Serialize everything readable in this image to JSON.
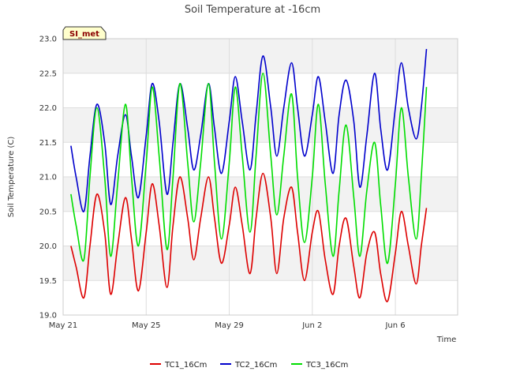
{
  "chart_data": {
    "type": "line",
    "title": "Soil Temperature at -16cm",
    "xlabel": "Time",
    "ylabel": "Soil Temperature (C)",
    "ylim": [
      19.0,
      23.0
    ],
    "xlim": [
      "2023-05-21",
      "2023-06-09"
    ],
    "grid": true,
    "legend_position": "bottom",
    "badge": "SI_met",
    "y_ticks": [
      "19.0",
      "19.5",
      "20.0",
      "20.5",
      "21.0",
      "21.5",
      "22.0",
      "22.5",
      "23.0"
    ],
    "x_ticks": [
      {
        "label": "May 21",
        "x": "2023-05-21"
      },
      {
        "label": "May 25",
        "x": "2023-05-25"
      },
      {
        "label": "May 29",
        "x": "2023-05-29"
      },
      {
        "label": "Jun 2",
        "x": "2023-06-02"
      },
      {
        "label": "Jun 6",
        "x": "2023-06-06"
      }
    ],
    "series": [
      {
        "name": "TC1_16Cm",
        "color": "#dd0000",
        "x": [
          "2023-05-21 09:00",
          "2023-05-21 15:00",
          "2023-05-22 00:00",
          "2023-05-22 07:00",
          "2023-05-22 15:00",
          "2023-05-23 00:00",
          "2023-05-23 07:00",
          "2023-05-23 15:00",
          "2023-05-24 00:00",
          "2023-05-24 07:00",
          "2023-05-24 15:00",
          "2023-05-25 00:00",
          "2023-05-25 07:00",
          "2023-05-25 15:00",
          "2023-05-26 00:00",
          "2023-05-26 07:00",
          "2023-05-26 15:00",
          "2023-05-27 00:00",
          "2023-05-27 07:00",
          "2023-05-27 15:00",
          "2023-05-28 00:00",
          "2023-05-28 07:00",
          "2023-05-28 15:00",
          "2023-05-29 00:00",
          "2023-05-29 07:00",
          "2023-05-29 15:00",
          "2023-05-30 00:00",
          "2023-05-30 07:00",
          "2023-05-30 15:00",
          "2023-05-31 00:00",
          "2023-05-31 07:00",
          "2023-05-31 15:00",
          "2023-06-01 00:00",
          "2023-06-01 07:00",
          "2023-06-01 15:00",
          "2023-06-02 00:00",
          "2023-06-02 07:00",
          "2023-06-02 15:00",
          "2023-06-03 00:00",
          "2023-06-03 07:00",
          "2023-06-03 15:00",
          "2023-06-04 00:00",
          "2023-06-04 07:00",
          "2023-06-04 15:00",
          "2023-06-05 00:00",
          "2023-06-05 07:00",
          "2023-06-05 15:00",
          "2023-06-06 00:00",
          "2023-06-06 07:00",
          "2023-06-06 15:00",
          "2023-06-07 00:00",
          "2023-06-07 06:00",
          "2023-06-07 12:00"
        ],
        "values": [
          20.0,
          19.7,
          19.25,
          20.0,
          20.75,
          20.2,
          19.3,
          20.0,
          20.7,
          20.1,
          19.35,
          20.2,
          20.9,
          20.3,
          19.4,
          20.3,
          21.0,
          20.4,
          19.8,
          20.4,
          21.0,
          20.4,
          19.75,
          20.3,
          20.85,
          20.3,
          19.6,
          20.4,
          21.05,
          20.4,
          19.6,
          20.4,
          20.85,
          20.2,
          19.5,
          20.2,
          20.5,
          19.8,
          19.3,
          20.0,
          20.4,
          19.7,
          19.25,
          19.9,
          20.2,
          19.6,
          19.2,
          19.9,
          20.5,
          20.0,
          19.45,
          20.0,
          20.55
        ]
      },
      {
        "name": "TC2_16Cm",
        "color": "#0000cc",
        "x": [
          "2023-05-21 09:00",
          "2023-05-21 15:00",
          "2023-05-22 00:00",
          "2023-05-22 07:00",
          "2023-05-22 15:00",
          "2023-05-23 00:00",
          "2023-05-23 07:00",
          "2023-05-23 15:00",
          "2023-05-24 00:00",
          "2023-05-24 07:00",
          "2023-05-24 15:00",
          "2023-05-25 00:00",
          "2023-05-25 07:00",
          "2023-05-25 15:00",
          "2023-05-26 00:00",
          "2023-05-26 07:00",
          "2023-05-26 15:00",
          "2023-05-27 00:00",
          "2023-05-27 07:00",
          "2023-05-27 15:00",
          "2023-05-28 00:00",
          "2023-05-28 07:00",
          "2023-05-28 15:00",
          "2023-05-29 00:00",
          "2023-05-29 07:00",
          "2023-05-29 15:00",
          "2023-05-30 00:00",
          "2023-05-30 07:00",
          "2023-05-30 15:00",
          "2023-05-31 00:00",
          "2023-05-31 07:00",
          "2023-05-31 15:00",
          "2023-06-01 00:00",
          "2023-06-01 07:00",
          "2023-06-01 15:00",
          "2023-06-02 00:00",
          "2023-06-02 07:00",
          "2023-06-02 15:00",
          "2023-06-03 00:00",
          "2023-06-03 07:00",
          "2023-06-03 15:00",
          "2023-06-04 00:00",
          "2023-06-04 07:00",
          "2023-06-04 15:00",
          "2023-06-05 00:00",
          "2023-06-05 07:00",
          "2023-06-05 15:00",
          "2023-06-06 00:00",
          "2023-06-06 07:00",
          "2023-06-06 15:00",
          "2023-06-07 00:00",
          "2023-06-07 06:00",
          "2023-06-07 12:00"
        ],
        "values": [
          21.45,
          21.0,
          20.5,
          21.3,
          22.05,
          21.5,
          20.6,
          21.3,
          21.9,
          21.3,
          20.7,
          21.6,
          22.35,
          21.8,
          20.75,
          21.5,
          22.35,
          21.7,
          21.1,
          21.6,
          22.35,
          21.7,
          21.05,
          21.8,
          22.45,
          21.8,
          21.1,
          21.9,
          22.75,
          22.0,
          21.3,
          22.0,
          22.65,
          22.0,
          21.3,
          21.9,
          22.45,
          21.8,
          21.05,
          21.9,
          22.4,
          21.8,
          20.85,
          21.6,
          22.5,
          21.7,
          21.1,
          22.0,
          22.65,
          22.0,
          21.55,
          22.0,
          22.85
        ]
      },
      {
        "name": "TC3_16Cm",
        "color": "#00dd00",
        "x": [
          "2023-05-21 09:00",
          "2023-05-21 15:00",
          "2023-05-22 00:00",
          "2023-05-22 07:00",
          "2023-05-22 15:00",
          "2023-05-23 00:00",
          "2023-05-23 07:00",
          "2023-05-23 15:00",
          "2023-05-24 00:00",
          "2023-05-24 07:00",
          "2023-05-24 15:00",
          "2023-05-25 00:00",
          "2023-05-25 07:00",
          "2023-05-25 15:00",
          "2023-05-26 00:00",
          "2023-05-26 07:00",
          "2023-05-26 15:00",
          "2023-05-27 00:00",
          "2023-05-27 07:00",
          "2023-05-27 15:00",
          "2023-05-28 00:00",
          "2023-05-28 07:00",
          "2023-05-28 15:00",
          "2023-05-29 00:00",
          "2023-05-29 07:00",
          "2023-05-29 15:00",
          "2023-05-30 00:00",
          "2023-05-30 07:00",
          "2023-05-30 15:00",
          "2023-05-31 00:00",
          "2023-05-31 07:00",
          "2023-05-31 15:00",
          "2023-06-01 00:00",
          "2023-06-01 07:00",
          "2023-06-01 15:00",
          "2023-06-02 00:00",
          "2023-06-02 07:00",
          "2023-06-02 15:00",
          "2023-06-03 00:00",
          "2023-06-03 07:00",
          "2023-06-03 15:00",
          "2023-06-04 00:00",
          "2023-06-04 07:00",
          "2023-06-04 15:00",
          "2023-06-05 00:00",
          "2023-06-05 07:00",
          "2023-06-05 15:00",
          "2023-06-06 00:00",
          "2023-06-06 07:00",
          "2023-06-06 15:00",
          "2023-06-07 00:00",
          "2023-06-07 06:00",
          "2023-06-07 12:00"
        ],
        "values": [
          20.75,
          20.3,
          19.8,
          21.0,
          22.0,
          21.0,
          19.85,
          20.9,
          22.05,
          21.0,
          20.0,
          21.2,
          22.3,
          21.3,
          19.95,
          21.0,
          22.35,
          21.2,
          20.35,
          21.2,
          22.35,
          21.2,
          20.1,
          21.2,
          22.3,
          21.3,
          20.2,
          21.3,
          22.5,
          21.3,
          20.45,
          21.3,
          22.2,
          21.0,
          20.05,
          21.0,
          22.05,
          20.9,
          19.85,
          20.8,
          21.75,
          20.7,
          19.85,
          20.8,
          21.5,
          20.6,
          19.75,
          20.9,
          22.0,
          21.0,
          20.1,
          21.0,
          22.3
        ]
      }
    ]
  }
}
